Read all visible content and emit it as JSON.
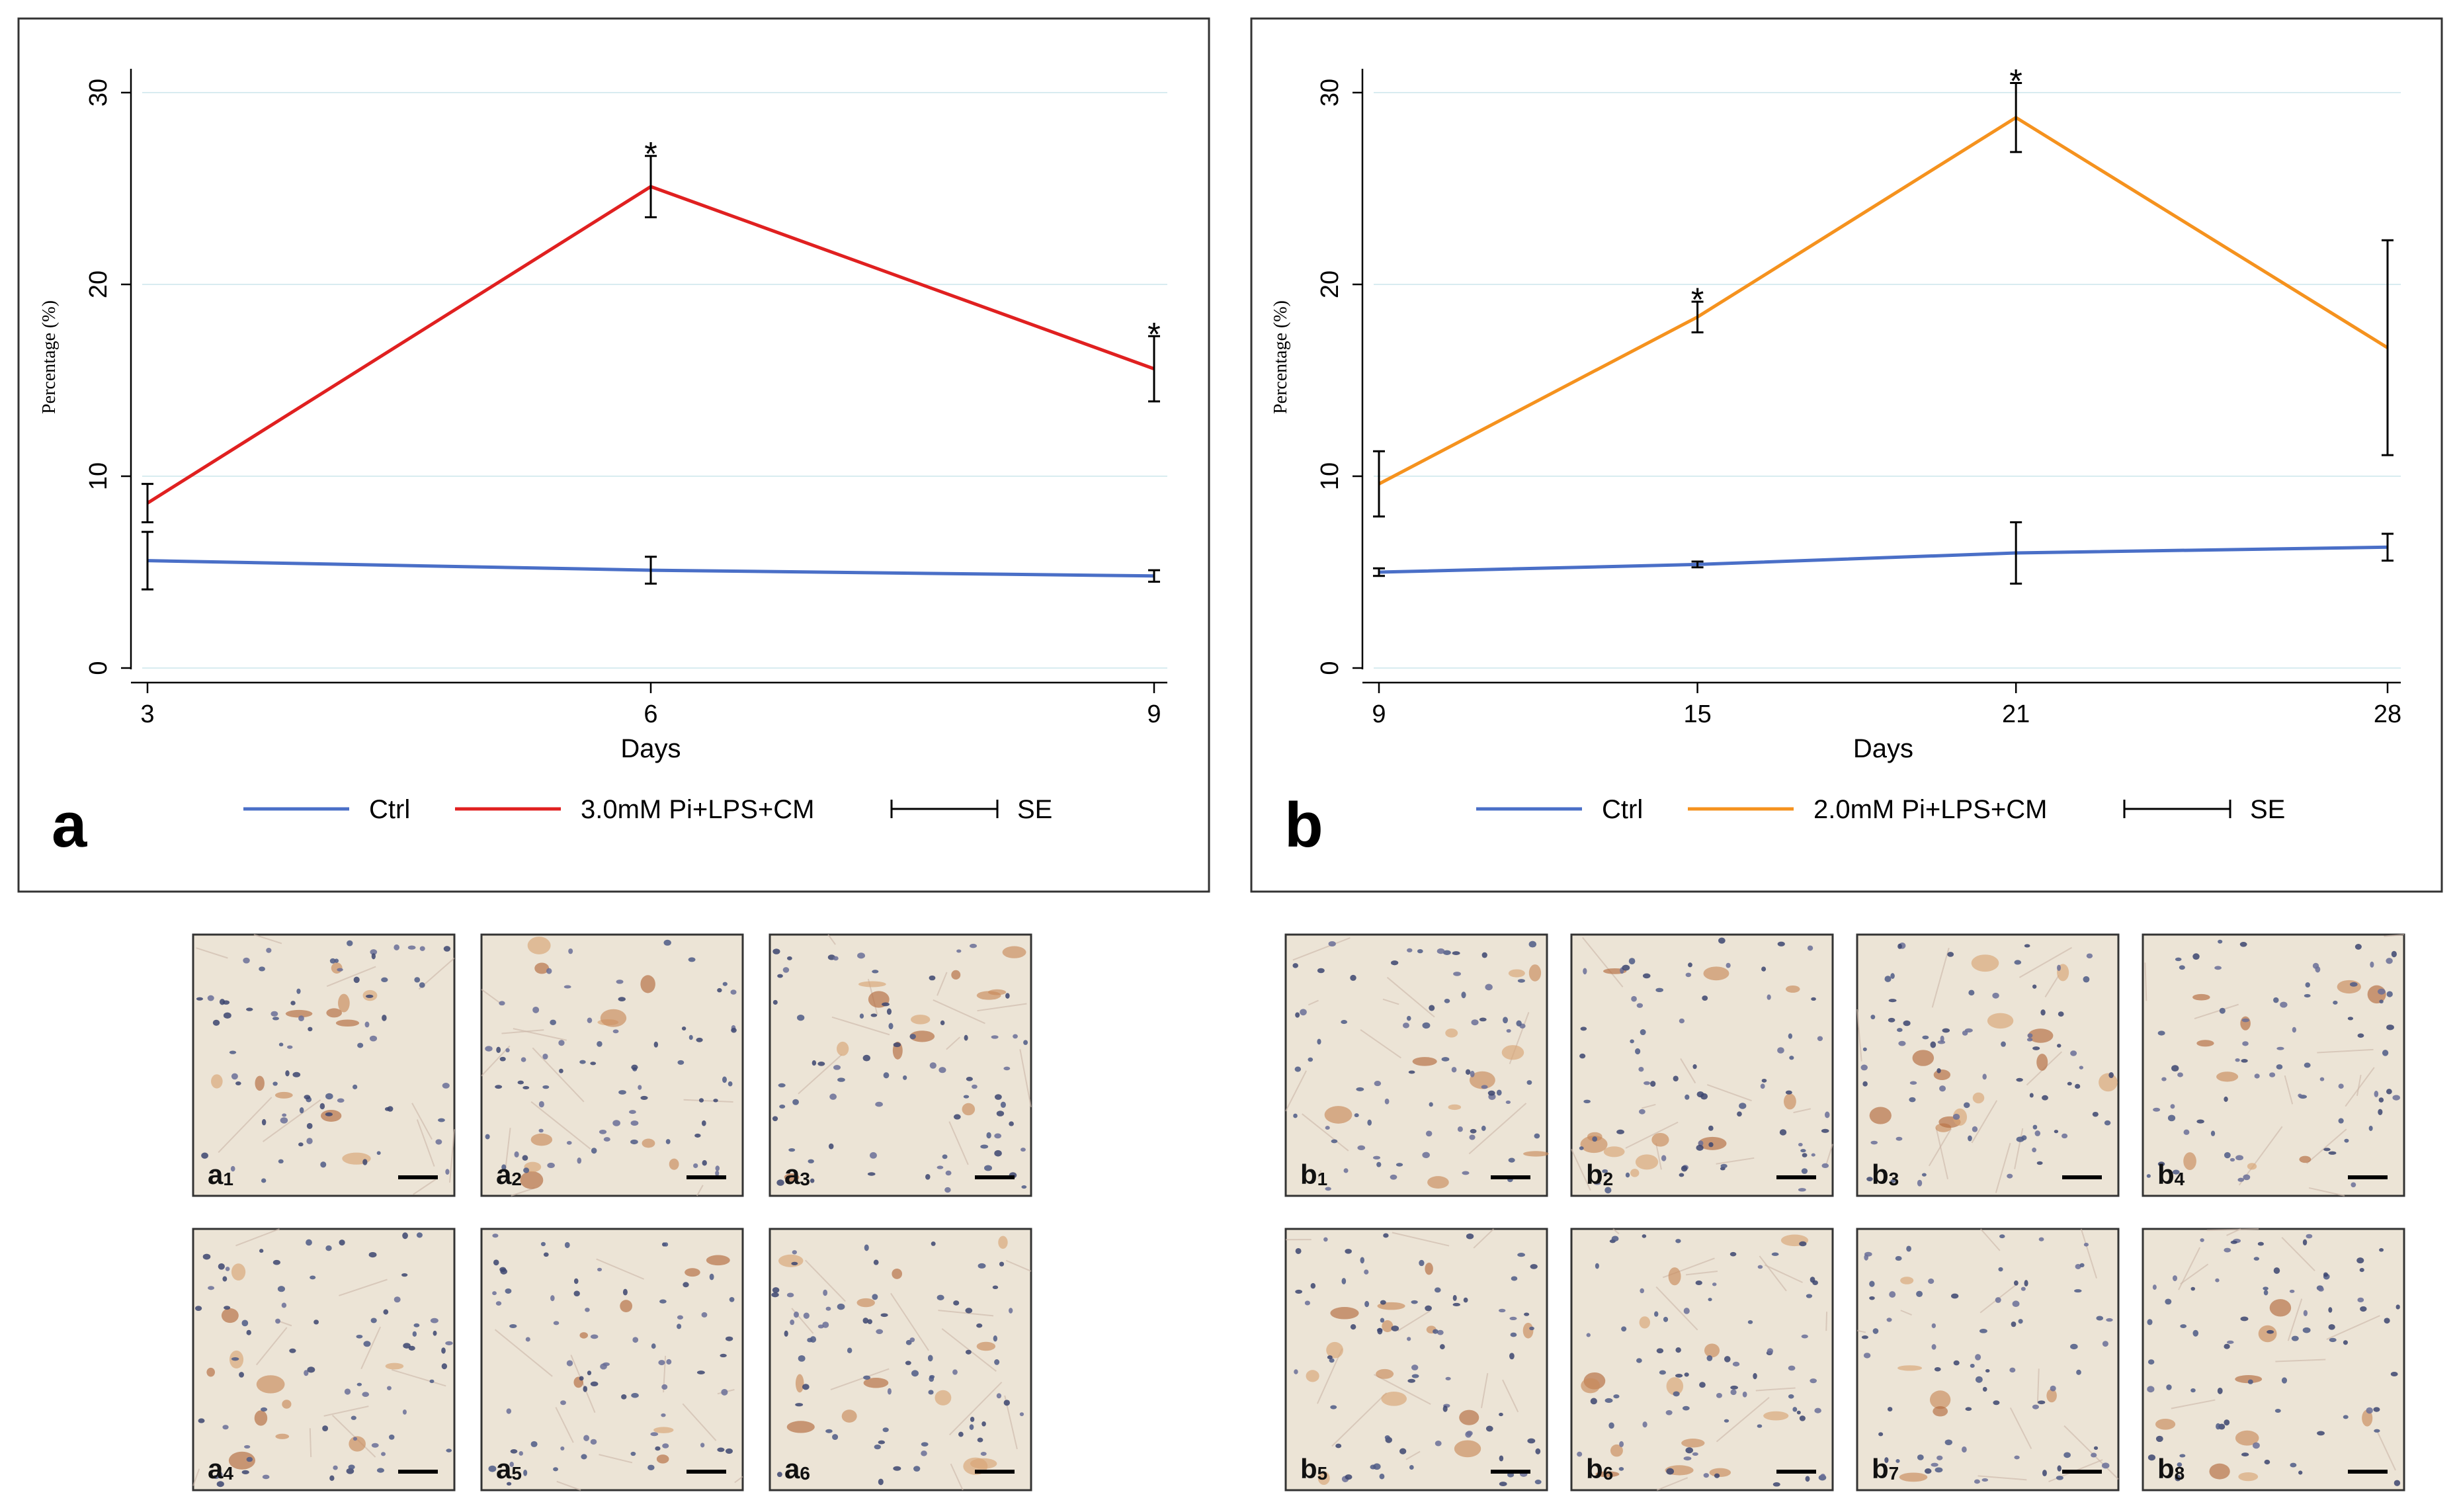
{
  "chart_data": [
    {
      "type": "line",
      "panel_label": "a",
      "x": [
        3,
        6,
        9
      ],
      "xticks": [
        3,
        6,
        9
      ],
      "yticks": [
        0,
        10,
        20,
        30
      ],
      "xlim": [
        3,
        9
      ],
      "ylim": [
        0,
        30
      ],
      "xlabel": "Days",
      "ylabel": "Percentage (%)",
      "grid": true,
      "legend_position": "bottom",
      "series": [
        {
          "name": "Ctrl",
          "color": "#4a6fc7",
          "values": [
            5.6,
            5.1,
            4.8
          ],
          "se": [
            1.5,
            0.7,
            0.3
          ]
        },
        {
          "name": "3.0mM Pi+LPS+CM",
          "color": "#e02020",
          "values": [
            8.6,
            25.1,
            15.6
          ],
          "se": [
            1.0,
            1.6,
            1.7
          ]
        }
      ],
      "significance": [
        {
          "x": 6,
          "y": 26.7,
          "label": "*"
        },
        {
          "x": 9,
          "y": 17.3,
          "label": "*"
        }
      ],
      "legend_se_label": "SE"
    },
    {
      "type": "line",
      "panel_label": "b",
      "x": [
        9,
        15,
        21,
        28
      ],
      "xticks": [
        9,
        15,
        21,
        28
      ],
      "yticks": [
        0,
        10,
        20,
        30
      ],
      "xlim": [
        9,
        28
      ],
      "ylim": [
        0,
        30
      ],
      "xlabel": "Days",
      "ylabel": "Percentage (%)",
      "grid": true,
      "legend_position": "bottom",
      "series": [
        {
          "name": "Ctrl",
          "color": "#4a6fc7",
          "values": [
            5.0,
            5.4,
            6.0,
            6.3
          ],
          "se": [
            0.2,
            0.15,
            1.6,
            0.7
          ]
        },
        {
          "name": "2.0mM Pi+LPS+CM",
          "color": "#f5921e",
          "values": [
            9.6,
            18.3,
            28.7,
            16.7
          ],
          "se": [
            1.7,
            0.8,
            1.8,
            5.6
          ]
        }
      ],
      "significance": [
        {
          "x": 15,
          "y": 19.1,
          "label": "*"
        },
        {
          "x": 21,
          "y": 30.5,
          "label": "*"
        }
      ],
      "legend_se_label": "SE"
    }
  ],
  "micrographs": {
    "a": [
      {
        "letter": "a",
        "sub": "1"
      },
      {
        "letter": "a",
        "sub": "2"
      },
      {
        "letter": "a",
        "sub": "3"
      },
      {
        "letter": "a",
        "sub": "4"
      },
      {
        "letter": "a",
        "sub": "5"
      },
      {
        "letter": "a",
        "sub": "6"
      }
    ],
    "b": [
      {
        "letter": "b",
        "sub": "1"
      },
      {
        "letter": "b",
        "sub": "2"
      },
      {
        "letter": "b",
        "sub": "3"
      },
      {
        "letter": "b",
        "sub": "4"
      },
      {
        "letter": "b",
        "sub": "5"
      },
      {
        "letter": "b",
        "sub": "6"
      },
      {
        "letter": "b",
        "sub": "7"
      },
      {
        "letter": "b",
        "sub": "8"
      }
    ]
  }
}
